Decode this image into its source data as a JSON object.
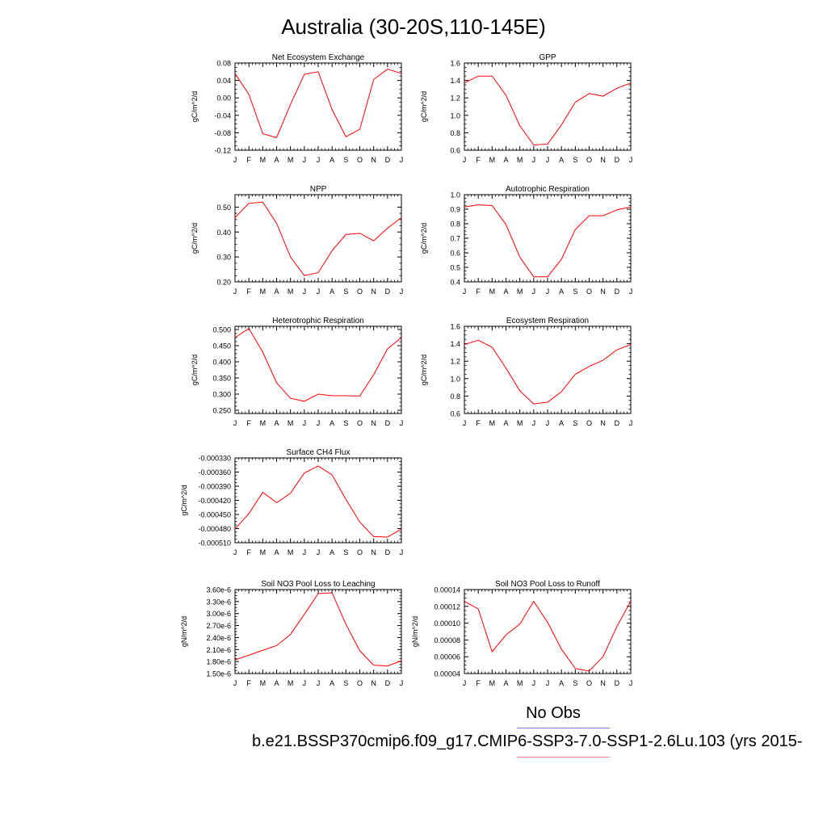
{
  "page": {
    "title": "Australia (30-20S,110-145E)",
    "legend": {
      "no_obs": "No Obs",
      "case": "b.e21.BSSP370cmip6.f09_g17.CMIP6-SSP3-7.0-SSP1-2.6Lu.103 (yrs 2015-"
    },
    "colors": {
      "series": "#ff0000",
      "legend_obs": "#7f86ff",
      "legend_case": "#ff8080"
    }
  },
  "chart_data": [
    {
      "type": "line",
      "title": "Net Ecosystem Exchange",
      "ylabel": "gC/m^2/d",
      "x": [
        "J",
        "F",
        "M",
        "A",
        "M",
        "J",
        "J",
        "A",
        "S",
        "O",
        "N",
        "D",
        "J"
      ],
      "ylim": [
        -0.12,
        0.08
      ],
      "yticks": [
        "-0.12",
        "-0.08",
        "-0.04",
        "0.00",
        "0.04",
        "0.08"
      ],
      "ytick_values": [
        -0.12,
        -0.08,
        -0.04,
        0.0,
        0.04,
        0.08
      ],
      "values": [
        0.056,
        0.008,
        -0.082,
        -0.091,
        -0.015,
        0.054,
        0.06,
        -0.027,
        -0.089,
        -0.072,
        0.042,
        0.066,
        0.056
      ]
    },
    {
      "type": "line",
      "title": "GPP",
      "ylabel": "gC/m^2/d",
      "x": [
        "J",
        "F",
        "M",
        "A",
        "M",
        "J",
        "J",
        "A",
        "S",
        "O",
        "N",
        "D",
        "J"
      ],
      "ylim": [
        0.6,
        1.6
      ],
      "yticks": [
        "0.6",
        "0.8",
        "1.0",
        "1.2",
        "1.4",
        "1.6"
      ],
      "ytick_values": [
        0.6,
        0.8,
        1.0,
        1.2,
        1.4,
        1.6
      ],
      "values": [
        1.37,
        1.45,
        1.45,
        1.23,
        0.88,
        0.66,
        0.67,
        0.89,
        1.15,
        1.25,
        1.22,
        1.31,
        1.37
      ]
    },
    {
      "type": "line",
      "title": "NPP",
      "ylabel": "gC/m^2/d",
      "x": [
        "J",
        "F",
        "M",
        "A",
        "M",
        "J",
        "J",
        "A",
        "S",
        "O",
        "N",
        "D",
        "J"
      ],
      "ylim": [
        0.2,
        0.55
      ],
      "yticks": [
        "0.20",
        "0.30",
        "0.40",
        "0.50"
      ],
      "ytick_values": [
        0.2,
        0.3,
        0.4,
        0.5
      ],
      "values": [
        0.458,
        0.515,
        0.52,
        0.435,
        0.3,
        0.225,
        0.237,
        0.325,
        0.39,
        0.395,
        0.365,
        0.415,
        0.458
      ]
    },
    {
      "type": "line",
      "title": "Autotrophic Respiration",
      "ylabel": "gC/m^2/d",
      "x": [
        "J",
        "F",
        "M",
        "A",
        "M",
        "J",
        "J",
        "A",
        "S",
        "O",
        "N",
        "D",
        "J"
      ],
      "ylim": [
        0.4,
        1.0
      ],
      "yticks": [
        "0.4",
        "0.5",
        "0.6",
        "0.7",
        "0.8",
        "0.9",
        "1.0"
      ],
      "ytick_values": [
        0.4,
        0.5,
        0.6,
        0.7,
        0.8,
        0.9,
        1.0
      ],
      "values": [
        0.915,
        0.93,
        0.925,
        0.795,
        0.57,
        0.435,
        0.435,
        0.555,
        0.76,
        0.855,
        0.855,
        0.895,
        0.915
      ]
    },
    {
      "type": "line",
      "title": "Heterotrophic Respiration",
      "ylabel": "gC/m^2/d",
      "x": [
        "J",
        "F",
        "M",
        "A",
        "M",
        "J",
        "J",
        "A",
        "S",
        "O",
        "N",
        "D",
        "J"
      ],
      "ylim": [
        0.24,
        0.51
      ],
      "yticks": [
        "0.250",
        "0.300",
        "0.350",
        "0.400",
        "0.450",
        "0.500"
      ],
      "ytick_values": [
        0.25,
        0.3,
        0.35,
        0.4,
        0.45,
        0.5
      ],
      "values": [
        0.475,
        0.503,
        0.43,
        0.335,
        0.287,
        0.278,
        0.3,
        0.295,
        0.295,
        0.294,
        0.36,
        0.44,
        0.475
      ]
    },
    {
      "type": "line",
      "title": "Ecosystem Respiration",
      "ylabel": "gC/m^2/d",
      "x": [
        "J",
        "F",
        "M",
        "A",
        "M",
        "J",
        "J",
        "A",
        "S",
        "O",
        "N",
        "D",
        "J"
      ],
      "ylim": [
        0.6,
        1.6
      ],
      "yticks": [
        "0.6",
        "0.8",
        "1.0",
        "1.2",
        "1.4",
        "1.6"
      ],
      "ytick_values": [
        0.6,
        0.8,
        1.0,
        1.2,
        1.4,
        1.6
      ],
      "values": [
        1.39,
        1.44,
        1.36,
        1.12,
        0.86,
        0.71,
        0.73,
        0.85,
        1.05,
        1.14,
        1.21,
        1.33,
        1.39
      ]
    },
    {
      "type": "line",
      "title": "Surface CH4 Flux",
      "ylabel": "gC/m^2/d",
      "x": [
        "J",
        "F",
        "M",
        "A",
        "M",
        "J",
        "J",
        "A",
        "S",
        "O",
        "N",
        "D",
        "J"
      ],
      "ylim": [
        -0.00051,
        -0.00033
      ],
      "yticks": [
        "-0.000510",
        "-0.000480",
        "-0.000450",
        "-0.000420",
        "-0.000390",
        "-0.000360",
        "-0.000330"
      ],
      "ytick_values": [
        -0.00051,
        -0.00048,
        -0.00045,
        -0.00042,
        -0.00039,
        -0.00036,
        -0.00033
      ],
      "values": [
        -0.000481,
        -0.000448,
        -0.000403,
        -0.000425,
        -0.000405,
        -0.000362,
        -0.000347,
        -0.000366,
        -0.000418,
        -0.000466,
        -0.000497,
        -0.000498,
        -0.000481
      ]
    },
    {
      "type": "line",
      "title": "Soil NO3 Pool Loss to Leaching",
      "ylabel": "gN/m^2/d",
      "x": [
        "J",
        "F",
        "M",
        "A",
        "M",
        "J",
        "J",
        "A",
        "S",
        "O",
        "N",
        "D",
        "J"
      ],
      "ylim": [
        1.5e-06,
        3.6e-06
      ],
      "yticks": [
        "1.50e-6",
        "1.80e-6",
        "2.10e-6",
        "2.40e-6",
        "2.70e-6",
        "3.00e-6",
        "3.30e-6",
        "3.60e-6"
      ],
      "ytick_values": [
        1.5e-06,
        1.8e-06,
        2.1e-06,
        2.4e-06,
        2.7e-06,
        3e-06,
        3.3e-06,
        3.6e-06
      ],
      "values": [
        1.84e-06,
        1.96e-06,
        2.08e-06,
        2.2e-06,
        2.48e-06,
        2.98e-06,
        3.5e-06,
        3.52e-06,
        2.73e-06,
        2.07e-06,
        1.71e-06,
        1.69e-06,
        1.82e-06
      ]
    },
    {
      "type": "line",
      "title": "Soil NO3 Pool Loss to Runoff",
      "ylabel": "gN/m^2/d",
      "x": [
        "J",
        "F",
        "M",
        "A",
        "M",
        "J",
        "J",
        "A",
        "S",
        "O",
        "N",
        "D",
        "J"
      ],
      "ylim": [
        4e-05,
        0.00014
      ],
      "yticks": [
        "0.00004",
        "0.00006",
        "0.00008",
        "0.00010",
        "0.00012",
        "0.00014"
      ],
      "ytick_values": [
        4e-05,
        6e-05,
        8e-05,
        0.0001,
        0.00012,
        0.00014
      ],
      "values": [
        0.000126,
        0.000117,
        6.6e-05,
        8.6e-05,
        9.9e-05,
        0.000126,
        0.000101,
        6.9e-05,
        4.6e-05,
        4.3e-05,
        6e-05,
        9.6e-05,
        0.000126
      ]
    }
  ]
}
